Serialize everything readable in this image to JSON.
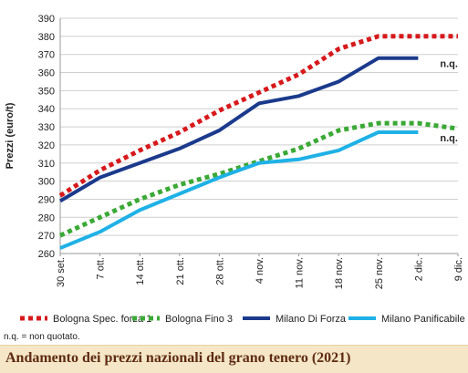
{
  "chart_data": {
    "type": "line",
    "title": "Andamento dei prezzi nazionali del grano tenero (2021)",
    "ylabel": "Prezzi (euro/t)",
    "xlabel": "",
    "ylim": [
      260,
      390
    ],
    "yticks": [
      260,
      270,
      280,
      290,
      300,
      310,
      320,
      330,
      340,
      350,
      360,
      370,
      380,
      390
    ],
    "categories": [
      "30 set.",
      "7 ott.",
      "14 ott.",
      "21 ott.",
      "28 ott.",
      "4 nov.",
      "11 nov.",
      "18 nov.",
      "25 nov.",
      "2 dic.",
      "9 dic."
    ],
    "grid": "horizontal",
    "legend_position": "bottom",
    "series": [
      {
        "name": "Bologna Spec. forza 1",
        "color": "#d7191c",
        "style": "dotted",
        "values": [
          292,
          306,
          317,
          327,
          339,
          349,
          359,
          373,
          380,
          380,
          380
        ]
      },
      {
        "name": "Bologna Fino 3",
        "color": "#3aa935",
        "style": "dotted",
        "values": [
          270,
          280,
          290,
          298,
          304,
          311,
          318,
          328,
          332,
          332,
          329
        ]
      },
      {
        "name": "Milano Di Forza",
        "color": "#1b3a8c",
        "style": "solid",
        "values": [
          289,
          302,
          310,
          318,
          328,
          343,
          347,
          355,
          368,
          368,
          null
        ]
      },
      {
        "name": "Milano Panificabile",
        "color": "#1fb1e6",
        "style": "solid",
        "values": [
          263,
          272,
          284,
          293,
          302,
          310,
          312,
          317,
          327,
          327,
          null
        ]
      }
    ],
    "annotations": [
      {
        "text": "n.q.",
        "series": "Milano Di Forza"
      },
      {
        "text": "n.q.",
        "series": "Milano Panificabile"
      }
    ]
  },
  "note": "n.q. = non quotato."
}
